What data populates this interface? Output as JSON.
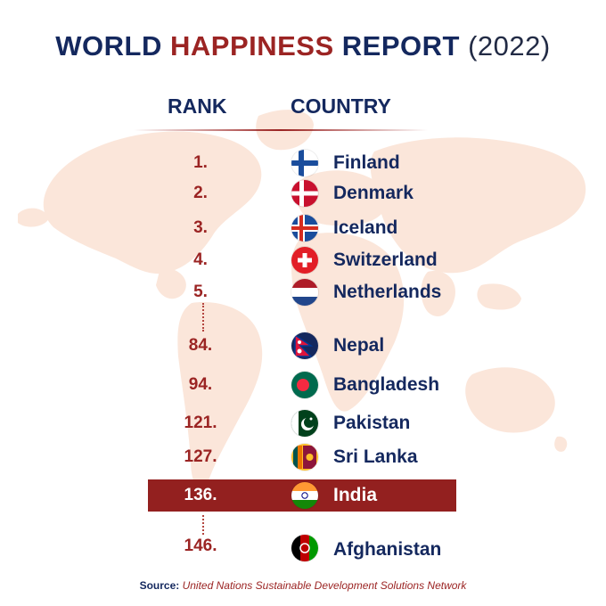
{
  "title": {
    "part1": "WORLD",
    "part2": "HAPPINESS",
    "part3": "REPORT",
    "year": "(2022)"
  },
  "headers": {
    "rank": "RANK",
    "country": "COUNTRY"
  },
  "rows": [
    {
      "rank": "1.",
      "country": "Finland",
      "flag_icon": "finland-flag-icon"
    },
    {
      "rank": "2.",
      "country": "Denmark",
      "flag_icon": "denmark-flag-icon"
    },
    {
      "rank": "3.",
      "country": "Iceland",
      "flag_icon": "iceland-flag-icon"
    },
    {
      "rank": "4.",
      "country": "Switzerland",
      "flag_icon": "switzerland-flag-icon"
    },
    {
      "rank": "5.",
      "country": "Netherlands",
      "flag_icon": "netherlands-flag-icon"
    },
    {
      "rank": "84.",
      "country": "Nepal",
      "flag_icon": "nepal-flag-icon"
    },
    {
      "rank": "94.",
      "country": "Bangladesh",
      "flag_icon": "bangladesh-flag-icon"
    },
    {
      "rank": "121.",
      "country": "Pakistan",
      "flag_icon": "pakistan-flag-icon"
    },
    {
      "rank": "127.",
      "country": "Sri Lanka",
      "flag_icon": "sri-lanka-flag-icon"
    },
    {
      "rank": "136.",
      "country": "India",
      "flag_icon": "india-flag-icon",
      "highlighted": true
    },
    {
      "rank": "146.",
      "country": "Afghanistan",
      "flag_icon": "afghanistan-flag-icon"
    }
  ],
  "source": {
    "label": "Source:",
    "text": "United Nations Sustainable Development Solutions Network"
  },
  "colors": {
    "navy": "#14285e",
    "maroon": "#9b2423",
    "highlight": "#93201f",
    "map": "#fbe7dc"
  }
}
